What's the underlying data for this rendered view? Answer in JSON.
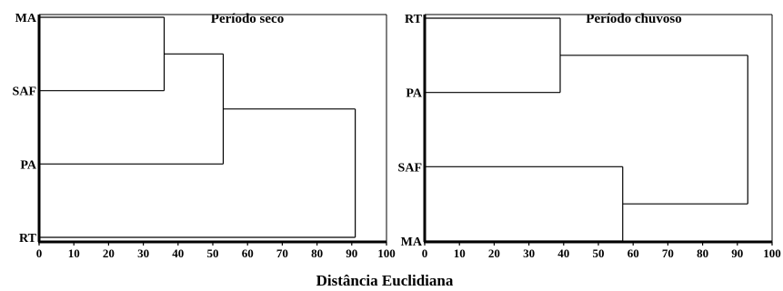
{
  "figure": {
    "xlabel": "Distância Euclidiana"
  },
  "chart_data": [
    {
      "type": "dendrogram",
      "title": "Período seco",
      "xlabel": "Distância Euclidiana",
      "xlim": [
        0,
        100
      ],
      "xticks": [
        0,
        10,
        20,
        30,
        40,
        50,
        60,
        70,
        80,
        90,
        100
      ],
      "leaves": [
        "MA",
        "SAF",
        "PA",
        "RT"
      ],
      "merges": [
        {
          "members": [
            "MA",
            "SAF"
          ],
          "distance": 36
        },
        {
          "members": [
            "MA",
            "SAF",
            "PA"
          ],
          "distance": 53
        },
        {
          "members": [
            "MA",
            "SAF",
            "PA",
            "RT"
          ],
          "distance": 91
        }
      ]
    },
    {
      "type": "dendrogram",
      "title": "Período chuvoso",
      "xlabel": "Distância Euclidiana",
      "xlim": [
        0,
        100
      ],
      "xticks": [
        0,
        10,
        20,
        30,
        40,
        50,
        60,
        70,
        80,
        90,
        100
      ],
      "leaves": [
        "RT",
        "PA",
        "SAF",
        "MA"
      ],
      "merges": [
        {
          "members": [
            "RT",
            "PA"
          ],
          "distance": 39
        },
        {
          "members": [
            "SAF",
            "MA"
          ],
          "distance": 57
        },
        {
          "members": [
            "RT",
            "PA",
            "SAF",
            "MA"
          ],
          "distance": 93
        }
      ]
    }
  ]
}
